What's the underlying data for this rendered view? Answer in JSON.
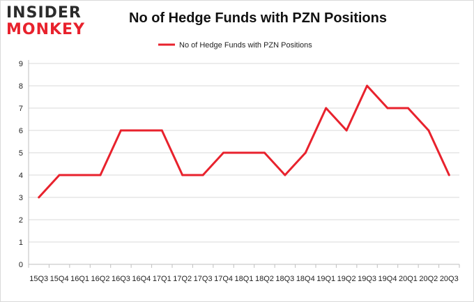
{
  "brand": {
    "line1": "INSIDER",
    "line2": "MONKEY"
  },
  "chart_data": {
    "type": "line",
    "title": "No of Hedge Funds with PZN Positions",
    "xlabel": "",
    "ylabel": "",
    "categories": [
      "15Q3",
      "15Q4",
      "16Q1",
      "16Q2",
      "16Q3",
      "16Q4",
      "17Q1",
      "17Q2",
      "17Q3",
      "17Q4",
      "18Q1",
      "18Q2",
      "18Q3",
      "18Q4",
      "19Q1",
      "19Q2",
      "19Q3",
      "19Q4",
      "20Q1",
      "20Q2",
      "20Q3"
    ],
    "series": [
      {
        "name": "No of Hedge Funds with PZN Positions",
        "values": [
          3,
          4,
          4,
          4,
          6,
          6,
          6,
          4,
          4,
          5,
          5,
          5,
          4,
          5,
          7,
          6,
          8,
          7,
          7,
          6,
          4
        ]
      }
    ],
    "ylim": [
      0,
      9
    ],
    "yticks": [
      0,
      1,
      2,
      3,
      4,
      5,
      6,
      7,
      8,
      9
    ],
    "grid": true,
    "legend": "top-center",
    "colors": {
      "line": "#e8222d",
      "grid": "#d9d9d9",
      "axis": "#bfbfbf"
    }
  }
}
